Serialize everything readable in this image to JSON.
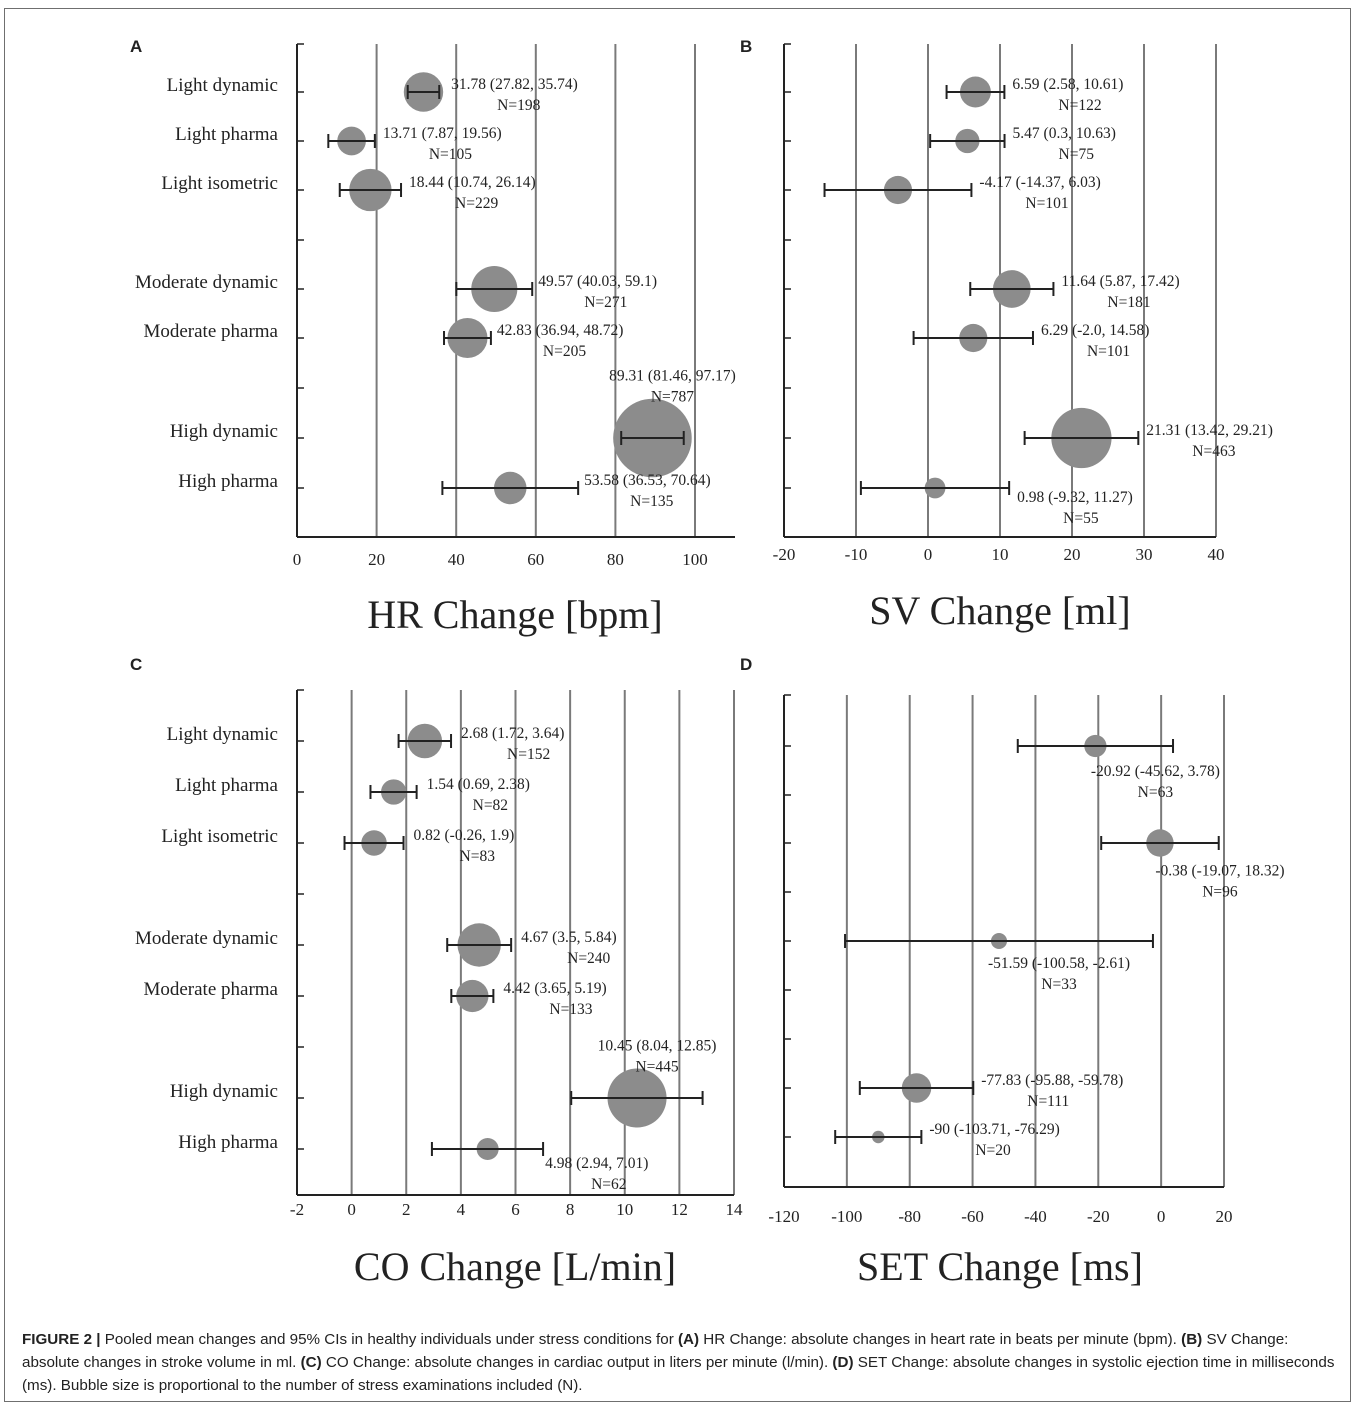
{
  "colors": {
    "bubble": "#8c8c8c",
    "gridline": "#7a7a7a",
    "axis": "#222222",
    "text": "#222222"
  },
  "caption": {
    "lead": "FIGURE 2 |",
    "intro": " Pooled mean changes and 95% CIs in healthy individuals under stress conditions for ",
    "a_tag": "(A)",
    "a_text": " HR Change: absolute changes in heart rate in beats per minute (bpm). ",
    "b_tag": "(B)",
    "b_text": " SV Change: absolute changes in stroke volume in ml. ",
    "c_tag": "(C)",
    "c_text": " CO Change: absolute changes in cardiac output in liters per minute (l/min). ",
    "d_tag": "(D)",
    "d_text": " SET Change: absolute changes in systolic ejection time in milliseconds (ms). Bubble size is proportional to the number of stress examinations included (N)."
  },
  "chart_data": [
    {
      "type": "scatter",
      "panel": "A",
      "xlabel": "HR Change [bpm]",
      "xlim": [
        0,
        110
      ],
      "xticks": [
        0,
        20,
        40,
        60,
        80,
        100
      ],
      "grid": true,
      "points": [
        {
          "label": "Light dynamic",
          "mean": 31.78,
          "lo": 27.82,
          "hi": 35.74,
          "n": 198,
          "text": "31.78 (27.82,  35.74)",
          "ntext": "N=198"
        },
        {
          "label": "Light pharma",
          "mean": 13.71,
          "lo": 7.87,
          "hi": 19.56,
          "n": 105,
          "text": "13.71 (7.87,  19.56)",
          "ntext": "N=105"
        },
        {
          "label": "Light isometric",
          "mean": 18.44,
          "lo": 10.74,
          "hi": 26.14,
          "n": 229,
          "text": "18.44 (10.74,  26.14)",
          "ntext": "N=229"
        },
        {
          "label": "Moderate dynamic",
          "mean": 49.57,
          "lo": 40.03,
          "hi": 59.1,
          "n": 271,
          "text": "49.57 (40.03,  59.1)",
          "ntext": "N=271"
        },
        {
          "label": "Moderate pharma",
          "mean": 42.83,
          "lo": 36.94,
          "hi": 48.72,
          "n": 205,
          "text": "42.83 (36.94,  48.72)",
          "ntext": "N=205"
        },
        {
          "label": "High dynamic",
          "mean": 89.31,
          "lo": 81.46,
          "hi": 97.17,
          "n": 787,
          "text": "89.31 (81.46,  97.17)",
          "ntext": "N=787"
        },
        {
          "label": "High pharma",
          "mean": 53.58,
          "lo": 36.53,
          "hi": 70.64,
          "n": 135,
          "text": "53.58 (36.53,  70.64)",
          "ntext": "N=135"
        }
      ]
    },
    {
      "type": "scatter",
      "panel": "B",
      "xlabel": "SV Change [ml]",
      "xlim": [
        -20,
        40
      ],
      "xticks": [
        -20,
        -10,
        0,
        10,
        20,
        30,
        40
      ],
      "grid": true,
      "points": [
        {
          "label": "Light dynamic",
          "mean": 6.59,
          "lo": 2.58,
          "hi": 10.61,
          "n": 122,
          "text": "6.59 (2.58,  10.61)",
          "ntext": "N=122"
        },
        {
          "label": "Light pharma",
          "mean": 5.47,
          "lo": 0.3,
          "hi": 10.63,
          "n": 75,
          "text": "5.47 (0.3,  10.63)",
          "ntext": "N=75"
        },
        {
          "label": "Light isometric",
          "mean": -4.17,
          "lo": -14.37,
          "hi": 6.03,
          "n": 101,
          "text": "-4.17 (-14.37,  6.03)",
          "ntext": "N=101"
        },
        {
          "label": "Moderate dynamic",
          "mean": 11.64,
          "lo": 5.87,
          "hi": 17.42,
          "n": 181,
          "text": "11.64 (5.87,  17.42)",
          "ntext": "N=181"
        },
        {
          "label": "Moderate pharma",
          "mean": 6.29,
          "lo": -2.0,
          "hi": 14.58,
          "n": 101,
          "text": "6.29 (-2.0,  14.58)",
          "ntext": "N=101"
        },
        {
          "label": "High dynamic",
          "mean": 21.31,
          "lo": 13.42,
          "hi": 29.21,
          "n": 463,
          "text": "21.31 (13.42,  29.21)",
          "ntext": "N=463"
        },
        {
          "label": "High pharma",
          "mean": 0.98,
          "lo": -9.32,
          "hi": 11.27,
          "n": 55,
          "text": "0.98 (-9.32,  11.27)",
          "ntext": "N=55"
        }
      ]
    },
    {
      "type": "scatter",
      "panel": "C",
      "xlabel": "CO Change [L/min]",
      "xlim": [
        -2,
        14
      ],
      "xticks": [
        -2,
        0,
        2,
        4,
        6,
        8,
        10,
        12,
        14
      ],
      "grid": true,
      "points": [
        {
          "label": "Light dynamic",
          "mean": 2.68,
          "lo": 1.72,
          "hi": 3.64,
          "n": 152,
          "text": "2.68 (1.72,  3.64)",
          "ntext": "N=152"
        },
        {
          "label": "Light pharma",
          "mean": 1.54,
          "lo": 0.69,
          "hi": 2.38,
          "n": 82,
          "text": "1.54 (0.69,  2.38)",
          "ntext": "N=82"
        },
        {
          "label": "Light isometric",
          "mean": 0.82,
          "lo": -0.26,
          "hi": 1.9,
          "n": 83,
          "text": "0.82 (-0.26,  1.9)",
          "ntext": "N=83"
        },
        {
          "label": "Moderate dynamic",
          "mean": 4.67,
          "lo": 3.5,
          "hi": 5.84,
          "n": 240,
          "text": "4.67 (3.5,  5.84)",
          "ntext": "N=240"
        },
        {
          "label": "Moderate pharma",
          "mean": 4.42,
          "lo": 3.65,
          "hi": 5.19,
          "n": 133,
          "text": "4.42 (3.65,  5.19)",
          "ntext": "N=133"
        },
        {
          "label": "High dynamic",
          "mean": 10.45,
          "lo": 8.04,
          "hi": 12.85,
          "n": 445,
          "text": "10.45 (8.04,  12.85)",
          "ntext": "N=445"
        },
        {
          "label": "High pharma",
          "mean": 4.98,
          "lo": 2.94,
          "hi": 7.01,
          "n": 62,
          "text": "4.98 (2.94,  7.01)",
          "ntext": "N=62"
        }
      ]
    },
    {
      "type": "scatter",
      "panel": "D",
      "xlabel": "SET Change [ms]",
      "xlim": [
        -120,
        20
      ],
      "xticks": [
        -120,
        -100,
        -80,
        -60,
        -40,
        -20,
        0,
        20
      ],
      "grid": true,
      "points": [
        {
          "label": "Light dynamic",
          "mean": -20.92,
          "lo": -45.62,
          "hi": 3.78,
          "n": 63,
          "text": "-20.92 (-45.62,  3.78)",
          "ntext": "N=63"
        },
        {
          "label": "Light isometric",
          "mean": -0.38,
          "lo": -19.07,
          "hi": 18.32,
          "n": 96,
          "text": "-0.38 (-19.07,  18.32)",
          "ntext": "N=96"
        },
        {
          "label": "Moderate dynamic",
          "mean": -51.59,
          "lo": -100.58,
          "hi": -2.61,
          "n": 33,
          "text": "-51.59 (-100.58,  -2.61)",
          "ntext": "N=33"
        },
        {
          "label": "High dynamic",
          "mean": -77.83,
          "lo": -95.88,
          "hi": -59.78,
          "n": 111,
          "text": "-77.83 (-95.88,  -59.78)",
          "ntext": "N=111"
        },
        {
          "label": "High pharma",
          "mean": -90,
          "lo": -103.71,
          "hi": -76.29,
          "n": 20,
          "text": "-90 (-103.71,  -76.29)",
          "ntext": "N=20"
        }
      ]
    }
  ]
}
